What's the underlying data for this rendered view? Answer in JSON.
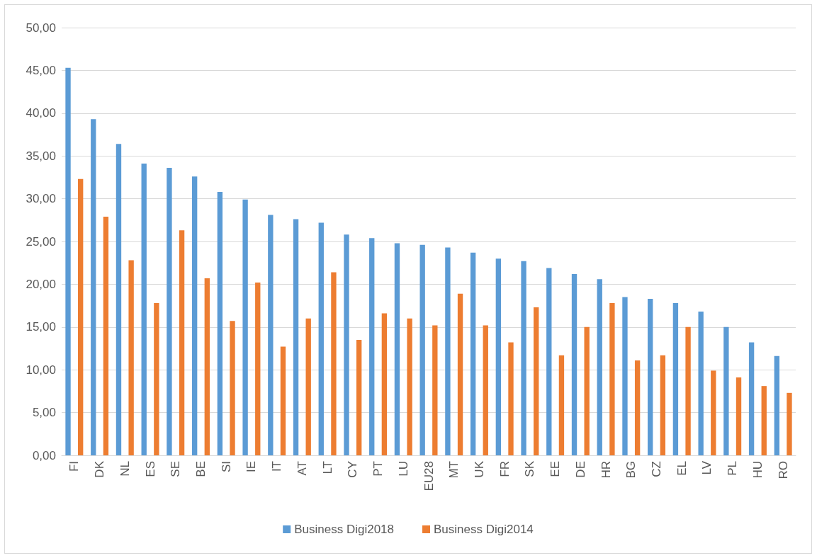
{
  "chart_data": {
    "type": "bar",
    "categories": [
      "FI",
      "DK",
      "NL",
      "ES",
      "SE",
      "BE",
      "SI",
      "IE",
      "IT",
      "AT",
      "LT",
      "CY",
      "PT",
      "LU",
      "EU28",
      "MT",
      "UK",
      "FR",
      "SK",
      "EE",
      "DE",
      "HR",
      "BG",
      "CZ",
      "EL",
      "LV",
      "PL",
      "HU",
      "RO"
    ],
    "series": [
      {
        "name": "Business Digi2018",
        "color": "#5b9bd5",
        "values": [
          45.3,
          39.3,
          36.4,
          34.1,
          33.6,
          32.6,
          30.8,
          29.9,
          28.1,
          27.6,
          27.2,
          25.8,
          25.4,
          24.8,
          24.6,
          24.3,
          23.7,
          23.0,
          22.7,
          21.9,
          21.2,
          20.6,
          18.5,
          18.3,
          17.8,
          16.8,
          15.0,
          13.2,
          11.6
        ]
      },
      {
        "name": "Business Digi2014",
        "color": "#ed7d31",
        "values": [
          32.3,
          27.9,
          22.8,
          17.8,
          26.3,
          20.7,
          15.7,
          20.2,
          12.7,
          16.0,
          21.4,
          13.5,
          16.6,
          16.0,
          15.2,
          18.9,
          15.2,
          13.2,
          17.3,
          11.7,
          15.0,
          17.8,
          11.1,
          11.7,
          15.0,
          9.9,
          9.1,
          8.1,
          7.3
        ]
      }
    ],
    "ylim": [
      0,
      50
    ],
    "yticks": [
      {
        "value": 0,
        "label": "0,00"
      },
      {
        "value": 5,
        "label": "5,00"
      },
      {
        "value": 10,
        "label": "10,00"
      },
      {
        "value": 15,
        "label": "15,00"
      },
      {
        "value": 20,
        "label": "20,00"
      },
      {
        "value": 25,
        "label": "25,00"
      },
      {
        "value": 30,
        "label": "30,00"
      },
      {
        "value": 35,
        "label": "35,00"
      },
      {
        "value": 40,
        "label": "40,00"
      },
      {
        "value": 45,
        "label": "45,00"
      },
      {
        "value": 50,
        "label": "50,00"
      }
    ],
    "grid": "y",
    "legend": "bottom"
  }
}
